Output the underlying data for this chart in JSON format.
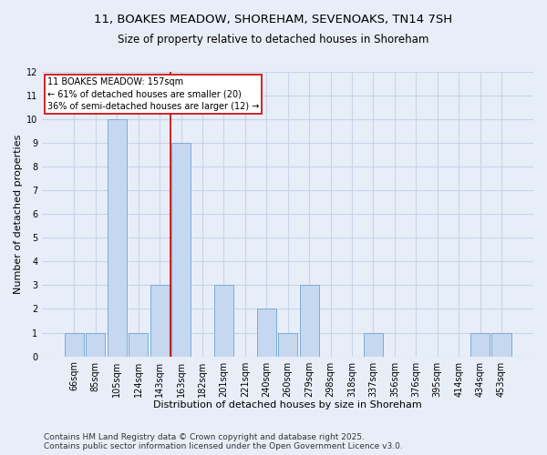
{
  "title_line1": "11, BOAKES MEADOW, SHOREHAM, SEVENOAKS, TN14 7SH",
  "title_line2": "Size of property relative to detached houses in Shoreham",
  "xlabel": "Distribution of detached houses by size in Shoreham",
  "ylabel": "Number of detached properties",
  "categories": [
    "66sqm",
    "85sqm",
    "105sqm",
    "124sqm",
    "143sqm",
    "163sqm",
    "182sqm",
    "201sqm",
    "221sqm",
    "240sqm",
    "260sqm",
    "279sqm",
    "298sqm",
    "318sqm",
    "337sqm",
    "356sqm",
    "376sqm",
    "395sqm",
    "414sqm",
    "434sqm",
    "453sqm"
  ],
  "values": [
    1,
    1,
    10,
    1,
    3,
    9,
    0,
    3,
    0,
    2,
    1,
    3,
    0,
    0,
    1,
    0,
    0,
    0,
    0,
    1,
    1
  ],
  "bar_color": "#C5D8F0",
  "bar_edge_color": "#7BADD4",
  "red_line_x": 5,
  "red_line_color": "#cc0000",
  "ylim": [
    0,
    12
  ],
  "yticks": [
    0,
    1,
    2,
    3,
    4,
    5,
    6,
    7,
    8,
    9,
    10,
    11,
    12
  ],
  "annotation_title": "11 BOAKES MEADOW: 157sqm",
  "annotation_line2": "← 61% of detached houses are smaller (20)",
  "annotation_line3": "36% of semi-detached houses are larger (12) →",
  "annotation_box_facecolor": "#ffffff",
  "annotation_box_edgecolor": "#cc0000",
  "footer_line1": "Contains HM Land Registry data © Crown copyright and database right 2025.",
  "footer_line2": "Contains public sector information licensed under the Open Government Licence v3.0.",
  "background_color": "#E8EEF8",
  "grid_color": "#C8D4E8",
  "title_fontsize": 9.5,
  "subtitle_fontsize": 8.5,
  "axis_label_fontsize": 8,
  "tick_fontsize": 7,
  "annotation_fontsize": 7,
  "footer_fontsize": 6.5
}
